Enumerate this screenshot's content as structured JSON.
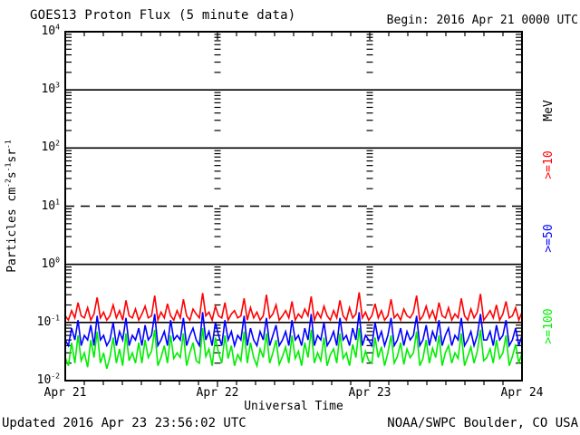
{
  "header": {
    "title": "GOES13 Proton Flux (5 minute data)",
    "begin": "Begin: 2016 Apr 21 0000 UTC"
  },
  "footer": {
    "updated": "Updated 2016 Apr 23 23:56:02 UTC",
    "credit": "NOAA/SWPC Boulder, CO USA"
  },
  "y_axis": {
    "plain_title": "Particles cm^-2 s^-1 sr^-1",
    "title_parts": [
      {
        "t": "Particles cm"
      },
      {
        "t": "-2",
        "sup": true
      },
      {
        "t": "s"
      },
      {
        "t": "-1",
        "sup": true
      },
      {
        "t": "sr"
      },
      {
        "t": "-1",
        "sup": true
      }
    ],
    "tick_base": "10",
    "tick_exponents": [
      "4",
      "3",
      "2",
      "1",
      "0",
      "-1",
      "-2"
    ]
  },
  "x_axis": {
    "title": "Universal Time",
    "tick_labels": [
      "Apr 21",
      "Apr 22",
      "Apr 23",
      "Apr 24"
    ]
  },
  "legend": {
    "title": "MeV",
    "items": [
      {
        "label": ">=10",
        "color": "#ff0000"
      },
      {
        "label": ">=50",
        "color": "#0000ff"
      },
      {
        "label": ">=100",
        "color": "#00ee00"
      }
    ]
  },
  "chart_data": {
    "type": "line",
    "title": "GOES13 Proton Flux (5 minute data)",
    "xlabel": "Universal Time",
    "ylabel": "Particles cm^-2 s^-1 sr^-1",
    "y_scale": "log",
    "ylim": [
      0.01,
      10000
    ],
    "x_hours_range": [
      0,
      72
    ],
    "x_day_ticks": [
      "Apr 21",
      "Apr 22",
      "Apr 23",
      "Apr 24"
    ],
    "grid": {
      "hlines": [
        {
          "value": 1000,
          "style": "solid"
        },
        {
          "value": 100,
          "style": "solid"
        },
        {
          "value": 10,
          "style": "dashed"
        },
        {
          "value": 1,
          "style": "solid"
        },
        {
          "value": 0.1,
          "style": "solid"
        }
      ],
      "day_boundary_tick_columns_hours": [
        24,
        48
      ],
      "hour_tick_step": 3
    },
    "legend_position": "right-rotated",
    "series": [
      {
        "name": ">=10 MeV",
        "color": "#ff0000",
        "approx_mean": 0.13,
        "approx_range": [
          0.09,
          0.33
        ],
        "values": [
          0.13,
          0.11,
          0.16,
          0.12,
          0.22,
          0.13,
          0.12,
          0.18,
          0.11,
          0.14,
          0.27,
          0.12,
          0.15,
          0.11,
          0.13,
          0.2,
          0.12,
          0.16,
          0.11,
          0.24,
          0.13,
          0.12,
          0.17,
          0.11,
          0.14,
          0.19,
          0.12,
          0.13,
          0.29,
          0.11,
          0.15,
          0.12,
          0.21,
          0.13,
          0.11,
          0.16,
          0.12,
          0.25,
          0.13,
          0.11,
          0.17,
          0.14,
          0.12,
          0.32,
          0.13,
          0.15,
          0.11,
          0.19,
          0.13,
          0.12,
          0.22,
          0.11,
          0.14,
          0.16,
          0.12,
          0.13,
          0.26,
          0.11,
          0.18,
          0.12,
          0.15,
          0.11,
          0.13,
          0.3,
          0.12,
          0.14,
          0.2,
          0.11,
          0.13,
          0.16,
          0.12,
          0.23,
          0.11,
          0.14,
          0.12,
          0.17,
          0.13,
          0.28,
          0.11,
          0.15,
          0.12,
          0.19,
          0.13,
          0.11,
          0.16,
          0.12,
          0.24,
          0.13,
          0.11,
          0.18,
          0.12,
          0.14,
          0.33,
          0.12,
          0.15,
          0.11,
          0.13,
          0.21,
          0.12,
          0.16,
          0.11,
          0.13,
          0.25,
          0.12,
          0.14,
          0.11,
          0.17,
          0.13,
          0.12,
          0.15,
          0.29,
          0.11,
          0.13,
          0.19,
          0.12,
          0.16,
          0.11,
          0.22,
          0.13,
          0.12,
          0.18,
          0.11,
          0.14,
          0.12,
          0.26,
          0.13,
          0.11,
          0.17,
          0.12,
          0.15,
          0.31,
          0.11,
          0.13,
          0.16,
          0.12,
          0.2,
          0.11,
          0.14,
          0.23,
          0.12,
          0.13,
          0.18,
          0.11,
          0.15
        ]
      },
      {
        "name": ">=50 MeV",
        "color": "#0000ff",
        "approx_mean": 0.055,
        "approx_range": [
          0.03,
          0.15
        ],
        "values": [
          0.05,
          0.04,
          0.08,
          0.05,
          0.11,
          0.04,
          0.06,
          0.05,
          0.09,
          0.04,
          0.13,
          0.05,
          0.06,
          0.04,
          0.05,
          0.1,
          0.04,
          0.07,
          0.05,
          0.12,
          0.04,
          0.06,
          0.05,
          0.08,
          0.04,
          0.09,
          0.05,
          0.06,
          0.14,
          0.04,
          0.05,
          0.07,
          0.04,
          0.11,
          0.05,
          0.06,
          0.05,
          0.12,
          0.04,
          0.06,
          0.08,
          0.05,
          0.04,
          0.15,
          0.05,
          0.07,
          0.04,
          0.1,
          0.06,
          0.04,
          0.11,
          0.05,
          0.07,
          0.04,
          0.06,
          0.05,
          0.13,
          0.04,
          0.08,
          0.05,
          0.04,
          0.07,
          0.05,
          0.12,
          0.04,
          0.06,
          0.09,
          0.04,
          0.05,
          0.07,
          0.04,
          0.11,
          0.05,
          0.06,
          0.04,
          0.08,
          0.05,
          0.14,
          0.04,
          0.06,
          0.05,
          0.1,
          0.04,
          0.05,
          0.07,
          0.04,
          0.12,
          0.05,
          0.06,
          0.04,
          0.08,
          0.05,
          0.15,
          0.04,
          0.06,
          0.05,
          0.04,
          0.1,
          0.05,
          0.07,
          0.04,
          0.06,
          0.12,
          0.04,
          0.05,
          0.08,
          0.04,
          0.07,
          0.05,
          0.06,
          0.13,
          0.04,
          0.05,
          0.09,
          0.04,
          0.07,
          0.05,
          0.11,
          0.04,
          0.06,
          0.08,
          0.04,
          0.06,
          0.05,
          0.12,
          0.04,
          0.05,
          0.07,
          0.04,
          0.06,
          0.14,
          0.05,
          0.05,
          0.07,
          0.04,
          0.09,
          0.05,
          0.06,
          0.11,
          0.04,
          0.05,
          0.08,
          0.04,
          0.06
        ]
      },
      {
        "name": ">=100 MeV",
        "color": "#00ee00",
        "approx_mean": 0.03,
        "approx_range": [
          0.014,
          0.08
        ],
        "values": [
          0.025,
          0.018,
          0.045,
          0.02,
          0.06,
          0.022,
          0.03,
          0.017,
          0.05,
          0.025,
          0.07,
          0.02,
          0.03,
          0.016,
          0.025,
          0.055,
          0.02,
          0.035,
          0.018,
          0.065,
          0.022,
          0.03,
          0.02,
          0.045,
          0.02,
          0.05,
          0.025,
          0.032,
          0.075,
          0.018,
          0.025,
          0.04,
          0.02,
          0.06,
          0.024,
          0.03,
          0.025,
          0.065,
          0.018,
          0.03,
          0.045,
          0.022,
          0.02,
          0.08,
          0.026,
          0.035,
          0.018,
          0.055,
          0.03,
          0.02,
          0.06,
          0.024,
          0.04,
          0.018,
          0.028,
          0.022,
          0.07,
          0.02,
          0.045,
          0.025,
          0.018,
          0.035,
          0.025,
          0.065,
          0.02,
          0.03,
          0.05,
          0.019,
          0.026,
          0.038,
          0.02,
          0.06,
          0.024,
          0.032,
          0.018,
          0.045,
          0.025,
          0.075,
          0.02,
          0.03,
          0.022,
          0.055,
          0.018,
          0.028,
          0.035,
          0.02,
          0.065,
          0.024,
          0.03,
          0.018,
          0.042,
          0.025,
          0.08,
          0.02,
          0.032,
          0.022,
          0.02,
          0.055,
          0.025,
          0.038,
          0.018,
          0.03,
          0.06,
          0.02,
          0.026,
          0.045,
          0.019,
          0.035,
          0.025,
          0.03,
          0.07,
          0.018,
          0.024,
          0.05,
          0.02,
          0.036,
          0.025,
          0.06,
          0.018,
          0.03,
          0.04,
          0.02,
          0.03,
          0.024,
          0.065,
          0.018,
          0.026,
          0.038,
          0.02,
          0.032,
          0.075,
          0.022,
          0.025,
          0.035,
          0.02,
          0.05,
          0.024,
          0.03,
          0.06,
          0.018,
          0.026,
          0.042,
          0.02,
          0.03
        ]
      }
    ]
  }
}
